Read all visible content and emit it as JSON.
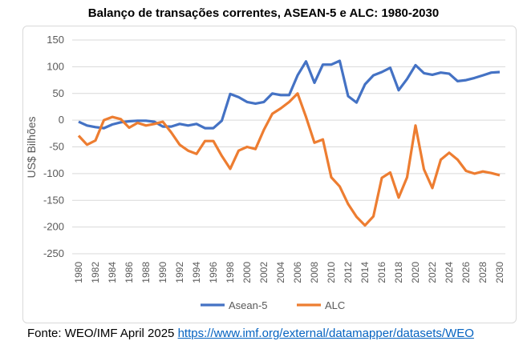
{
  "chart_data": {
    "type": "line",
    "title": "Balanço de transações correntes, ASEAN-5 e ALC: 1980-2030",
    "ylabel": "US$ Bilhões",
    "xlabel": "",
    "ylim": [
      -250,
      150
    ],
    "yticks": [
      150,
      100,
      50,
      0,
      -50,
      -100,
      -150,
      -200,
      -250
    ],
    "xticks": [
      1980,
      1982,
      1984,
      1986,
      1988,
      1990,
      1992,
      1994,
      1996,
      1998,
      2000,
      2002,
      2004,
      2006,
      2008,
      2010,
      2012,
      2014,
      2016,
      2018,
      2020,
      2022,
      2024,
      2026,
      2028,
      2030
    ],
    "grid": true,
    "legend": "bottom",
    "x": [
      1980,
      1981,
      1982,
      1983,
      1984,
      1985,
      1986,
      1987,
      1988,
      1989,
      1990,
      1991,
      1992,
      1993,
      1994,
      1995,
      1996,
      1997,
      1998,
      1999,
      2000,
      2001,
      2002,
      2003,
      2004,
      2005,
      2006,
      2007,
      2008,
      2009,
      2010,
      2011,
      2012,
      2013,
      2014,
      2015,
      2016,
      2017,
      2018,
      2019,
      2020,
      2021,
      2022,
      2023,
      2024,
      2025,
      2026,
      2027,
      2028,
      2029,
      2030
    ],
    "series": [
      {
        "name": "Asean-5",
        "color": "#4472c4",
        "values": [
          -3,
          -10,
          -13,
          -15,
          -8,
          -4,
          -2,
          -1,
          -1,
          -3,
          -12,
          -12,
          -7,
          -10,
          -7,
          -15,
          -15,
          -1,
          49,
          43,
          34,
          31,
          34,
          50,
          47,
          47,
          84,
          110,
          70,
          104,
          104,
          111,
          45,
          33,
          67,
          84,
          90,
          98,
          56,
          77,
          103,
          88,
          85,
          89,
          87,
          73,
          75,
          79,
          84,
          89,
          90
        ]
      },
      {
        "name": "ALC",
        "color": "#ed7d31",
        "values": [
          -29,
          -46,
          -38,
          0,
          6,
          2,
          -14,
          -5,
          -10,
          -7,
          -3,
          -23,
          -46,
          -57,
          -63,
          -39,
          -39,
          -67,
          -91,
          -57,
          -50,
          -54,
          -18,
          12,
          22,
          34,
          50,
          6,
          -42,
          -36,
          -107,
          -124,
          -157,
          -181,
          -197,
          -180,
          -108,
          -98,
          -145,
          -107,
          -10,
          -92,
          -127,
          -74,
          -61,
          -74,
          -95,
          -100,
          -96,
          -99,
          -103
        ]
      }
    ]
  },
  "source": {
    "prefix": "Fonte: WEO/IMF April 2025 ",
    "link": "https://www.imf.org/external/datamapper/datasets/WEO"
  }
}
